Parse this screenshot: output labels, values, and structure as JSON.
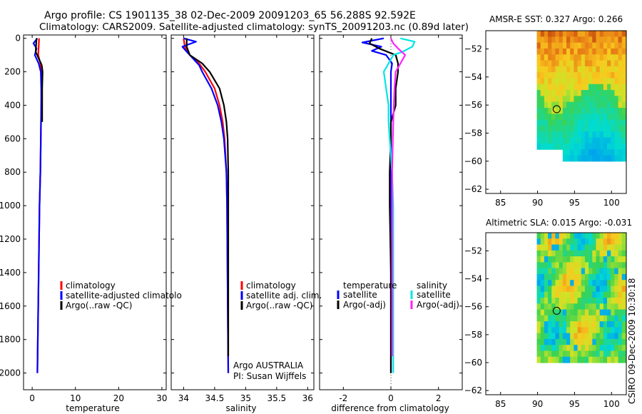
{
  "header": {
    "title_line1": "Argo profile: CS 1901135_38 02-Dec-2009 20091203_65 56.288S 92.592E",
    "title_line2": "Climatology: CARS2009. Satellite-adjusted climatology: synTS_20091203.nc (0.89d later)"
  },
  "side_label": "CSIRO 09-Dec-2009 10:30:18",
  "colors": {
    "climatology": "#ff0000",
    "satellite": "#0000ff",
    "argo": "#000000",
    "cyan": "#00e5e5",
    "magenta": "#ff22ff"
  },
  "chart_data": [
    {
      "id": "temperature",
      "type": "line",
      "xlabel": "temperature",
      "ylabel": "",
      "xlim": [
        -2,
        31
      ],
      "ylim": [
        2100,
        -20
      ],
      "xticks": [
        0,
        10,
        20,
        30
      ],
      "yticks": [
        0,
        200,
        400,
        600,
        800,
        1000,
        1200,
        1400,
        1600,
        1800,
        2000
      ],
      "ytick_labels": [
        "0",
        "200",
        "400",
        "600",
        "800",
        "1000",
        "1200",
        "1400",
        "1600",
        "1800",
        "2000"
      ],
      "legend": {
        "position": "lower-right",
        "entries": [
          "climatology",
          "satellite-adjusted climatolo",
          "Argo(..raw -QC)"
        ]
      },
      "series": [
        {
          "name": "climatology",
          "color": "red",
          "depth": [
            0,
            50,
            100,
            150,
            200,
            300,
            400,
            600,
            800,
            1000,
            1200,
            1400,
            1600,
            1800,
            2000
          ],
          "values": [
            1.6,
            1.5,
            1.4,
            1.9,
            2.2,
            2.2,
            2.1,
            2.0,
            1.9,
            1.7,
            1.6,
            1.5,
            1.4,
            1.3,
            1.2
          ]
        },
        {
          "name": "satellite-adjusted climatology",
          "color": "blue",
          "depth": [
            0,
            30,
            60,
            100,
            150,
            200,
            300,
            400,
            600,
            800,
            1000,
            1200,
            1400,
            1600,
            1800,
            2000
          ],
          "values": [
            1.2,
            0.3,
            1.0,
            0.6,
            1.5,
            2.0,
            2.1,
            2.1,
            2.0,
            1.9,
            1.7,
            1.6,
            1.5,
            1.4,
            1.3,
            1.2
          ]
        },
        {
          "name": "Argo(..raw -QC)",
          "color": "black",
          "depth": [
            0,
            40,
            80,
            120,
            160,
            200,
            300,
            400,
            500
          ],
          "values": [
            1.0,
            0.9,
            0.8,
            1.5,
            2.2,
            2.4,
            2.3,
            2.3,
            2.3
          ]
        }
      ]
    },
    {
      "id": "salinity",
      "type": "line",
      "xlabel": "salinity",
      "ylabel": "",
      "xlim": [
        33.8,
        36.1
      ],
      "ylim": [
        2100,
        -20
      ],
      "xticks": [
        34,
        34.5,
        35,
        35.5,
        36
      ],
      "xtick_labels": [
        "34",
        "34.5",
        "35",
        "35.5",
        "36"
      ],
      "legend": {
        "position": "lower-right",
        "entries": [
          "climatology",
          "satellite adj. clim.",
          "Argo(..raw -QC)"
        ]
      },
      "annotation": [
        "Argo AUSTRALIA",
        "PI: Susan Wijffels"
      ],
      "series": [
        {
          "name": "climatology",
          "color": "red",
          "depth": [
            0,
            50,
            100,
            150,
            200,
            300,
            400,
            500,
            600,
            800,
            1000,
            1500,
            2000
          ],
          "values": [
            34.0,
            34.02,
            34.1,
            34.25,
            34.35,
            34.5,
            34.58,
            34.63,
            34.66,
            34.69,
            34.7,
            34.71,
            34.72
          ]
        },
        {
          "name": "satellite adj. clim.",
          "color": "blue",
          "depth": [
            0,
            20,
            50,
            80,
            120,
            160,
            200,
            300,
            400,
            500,
            600,
            800,
            1000,
            1500,
            2000
          ],
          "values": [
            34.0,
            34.2,
            33.98,
            34.05,
            34.15,
            34.25,
            34.3,
            34.45,
            34.55,
            34.61,
            34.65,
            34.69,
            34.7,
            34.71,
            34.72
          ]
        },
        {
          "name": "Argo(..raw -QC)",
          "color": "black",
          "depth": [
            0,
            50,
            100,
            150,
            200,
            300,
            400,
            500,
            600,
            800,
            1000,
            1500,
            1900
          ],
          "values": [
            34.05,
            34.05,
            34.1,
            34.3,
            34.42,
            34.58,
            34.65,
            34.69,
            34.71,
            34.72,
            34.72,
            34.72,
            34.72
          ]
        }
      ]
    },
    {
      "id": "difference",
      "type": "line",
      "xlabel": "difference from climatology",
      "ylabel": "",
      "xlim": [
        -3,
        3
      ],
      "ylim": [
        2100,
        -20
      ],
      "xticks": [
        -2,
        0,
        2
      ],
      "xtick_labels": [
        "-2",
        "0",
        "2"
      ],
      "zero_line": 0,
      "legend": {
        "position": "lower-center",
        "headers": [
          "temperature",
          "salinity"
        ],
        "entries": [
          "satellite",
          "Argo(-adj)",
          "satellite",
          "Argo(-adj)"
        ]
      },
      "series": [
        {
          "name": "temperature satellite",
          "color": "blue",
          "depth": [
            0,
            25,
            50,
            75,
            100,
            150,
            200,
            400,
            1000,
            2000
          ],
          "values": [
            -0.3,
            -1.2,
            -0.4,
            -0.8,
            -0.2,
            0.05,
            0.0,
            0.0,
            0.0,
            0.0
          ]
        },
        {
          "name": "temperature Argo(-adj)",
          "color": "black",
          "depth": [
            0,
            30,
            60,
            100,
            150,
            200,
            300,
            400,
            500,
            600,
            800,
            1000,
            1400,
            2000
          ],
          "values": [
            -0.8,
            -0.9,
            -0.5,
            0.2,
            0.3,
            0.3,
            0.2,
            0.2,
            0.0,
            0.0,
            -0.05,
            -0.05,
            0.0,
            0.0
          ]
        },
        {
          "name": "salinity satellite",
          "color": "cyan",
          "depth": [
            0,
            20,
            50,
            80,
            100,
            150,
            200,
            300,
            400,
            500,
            600,
            800,
            1000,
            1500,
            2000
          ],
          "values": [
            0.4,
            1.0,
            0.9,
            0.5,
            0.1,
            -0.1,
            -0.3,
            -0.2,
            -0.1,
            -0.1,
            -0.05,
            0.05,
            0.1,
            0.1,
            0.1
          ]
        },
        {
          "name": "salinity Argo(-adj)",
          "color": "magenta",
          "depth": [
            0,
            30,
            60,
            100,
            150,
            200,
            300,
            500,
            800,
            1000,
            1500,
            1900
          ],
          "values": [
            0.0,
            0.1,
            0.3,
            0.6,
            0.4,
            0.2,
            0.15,
            0.1,
            0.05,
            0.05,
            0.05,
            0.05
          ]
        }
      ]
    },
    {
      "id": "sst_map",
      "type": "heatmap",
      "title": "AMSR-E SST: 0.327  Argo: 0.266",
      "xlim": [
        83,
        102
      ],
      "ylim": [
        -62.3,
        -50.7
      ],
      "xticks": [
        85,
        90,
        95,
        100
      ],
      "yticks": [
        -52,
        -54,
        -56,
        -58,
        -60,
        -62
      ],
      "marker": {
        "lon": 92.59,
        "lat": -56.29
      },
      "data_extent": {
        "lon": [
          89.9,
          101.9
        ],
        "lat": [
          -60.0,
          -50.7
        ]
      }
    },
    {
      "id": "sla_map",
      "type": "heatmap",
      "title": "Altimetric SLA: 0.015  Argo: -0.031",
      "xlim": [
        83,
        102
      ],
      "ylim": [
        -62.3,
        -50.7
      ],
      "xticks": [
        85,
        90,
        95,
        100
      ],
      "yticks": [
        -52,
        -54,
        -56,
        -58,
        -60,
        -62
      ],
      "marker": {
        "lon": 92.59,
        "lat": -56.29
      },
      "data_extent": {
        "lon": [
          89.9,
          101.9
        ],
        "lat": [
          -60.0,
          -50.7
        ]
      }
    }
  ]
}
